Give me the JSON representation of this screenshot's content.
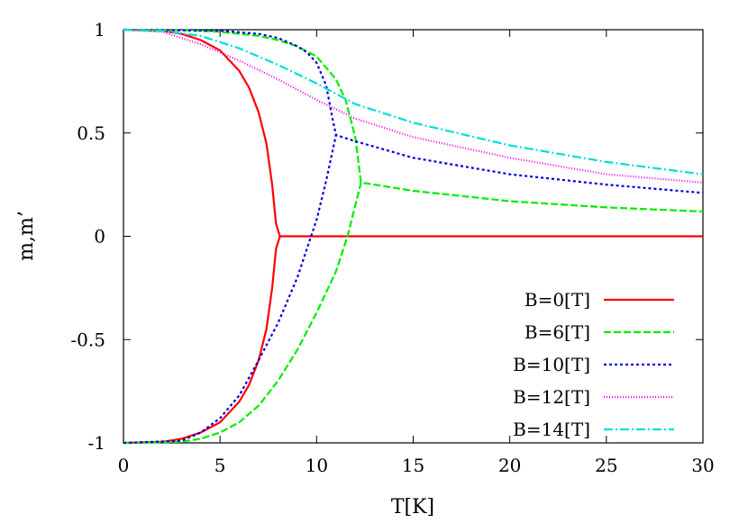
{
  "chart_data": {
    "type": "line",
    "xlabel": "T[K]",
    "ylabel": "m,m’",
    "xlim": [
      0,
      30
    ],
    "ylim": [
      -1,
      1
    ],
    "xticks": [
      0,
      5,
      10,
      15,
      20,
      25,
      30
    ],
    "yticks": [
      -1,
      -0.5,
      0,
      0.5,
      1
    ],
    "xtick_labels": [
      "0",
      "5",
      "10",
      "15",
      "20",
      "25",
      "30"
    ],
    "ytick_labels": [
      "-1",
      "-0.5",
      "0",
      "0.5",
      "1"
    ],
    "grid": false,
    "legend_position": "bottom-right",
    "series": [
      {
        "name": "B=0[T]",
        "color": "#ff0000",
        "dash": "solid",
        "branches": [
          [
            [
              0,
              1
            ],
            [
              2,
              0.995
            ],
            [
              3,
              0.98
            ],
            [
              4,
              0.95
            ],
            [
              5,
              0.9
            ],
            [
              6,
              0.8
            ],
            [
              6.5,
              0.72
            ],
            [
              7,
              0.6
            ],
            [
              7.4,
              0.45
            ],
            [
              7.7,
              0.25
            ],
            [
              7.9,
              0.06
            ],
            [
              8.1,
              0.0
            ],
            [
              9,
              0
            ],
            [
              12,
              0
            ],
            [
              15,
              0
            ],
            [
              20,
              0
            ],
            [
              25,
              0
            ],
            [
              30,
              0
            ]
          ],
          [
            [
              0,
              -1
            ],
            [
              2,
              -0.995
            ],
            [
              3,
              -0.98
            ],
            [
              4,
              -0.95
            ],
            [
              5,
              -0.9
            ],
            [
              6,
              -0.8
            ],
            [
              6.5,
              -0.72
            ],
            [
              7,
              -0.6
            ],
            [
              7.4,
              -0.45
            ],
            [
              7.7,
              -0.25
            ],
            [
              7.9,
              -0.06
            ],
            [
              8.1,
              0.0
            ]
          ]
        ]
      },
      {
        "name": "B=6[T]",
        "color": "#00ee00",
        "dash": "8,3",
        "branches": [
          [
            [
              0,
              1
            ],
            [
              3,
              0.998
            ],
            [
              5,
              0.99
            ],
            [
              7,
              0.97
            ],
            [
              8,
              0.95
            ],
            [
              9,
              0.92
            ],
            [
              10,
              0.87
            ],
            [
              11,
              0.76
            ],
            [
              11.5,
              0.66
            ],
            [
              12,
              0.48
            ],
            [
              12.3,
              0.26
            ],
            [
              13,
              0.25
            ],
            [
              15,
              0.22
            ],
            [
              20,
              0.17
            ],
            [
              25,
              0.14
            ],
            [
              30,
              0.12
            ]
          ],
          [
            [
              0,
              -1
            ],
            [
              3,
              -0.995
            ],
            [
              4,
              -0.98
            ],
            [
              5,
              -0.95
            ],
            [
              6,
              -0.9
            ],
            [
              7,
              -0.82
            ],
            [
              8,
              -0.7
            ],
            [
              9,
              -0.55
            ],
            [
              10,
              -0.37
            ],
            [
              11,
              -0.17
            ],
            [
              11.6,
              0
            ],
            [
              12.0,
              0.15
            ],
            [
              12.3,
              0.26
            ]
          ]
        ]
      },
      {
        "name": "B=10[T]",
        "color": "#0000dd",
        "dash": "3,3",
        "branches": [
          [
            [
              0,
              1
            ],
            [
              5,
              0.995
            ],
            [
              7,
              0.98
            ],
            [
              8,
              0.96
            ],
            [
              9,
              0.92
            ],
            [
              9.5,
              0.89
            ],
            [
              10,
              0.84
            ],
            [
              10.5,
              0.73
            ],
            [
              10.8,
              0.58
            ],
            [
              11,
              0.49
            ],
            [
              12,
              0.46
            ],
            [
              15,
              0.38
            ],
            [
              20,
              0.3
            ],
            [
              25,
              0.25
            ],
            [
              30,
              0.21
            ]
          ],
          [
            [
              0,
              -1
            ],
            [
              3,
              -0.99
            ],
            [
              4,
              -0.95
            ],
            [
              5,
              -0.88
            ],
            [
              6,
              -0.77
            ],
            [
              7,
              -0.6
            ],
            [
              8,
              -0.42
            ],
            [
              9,
              -0.2
            ],
            [
              10,
              0.08
            ],
            [
              10.5,
              0.27
            ],
            [
              11,
              0.49
            ]
          ]
        ]
      },
      {
        "name": "B=12[T]",
        "color": "#ee00ee",
        "dash": "1,2",
        "branches": [
          [
            [
              0,
              1
            ],
            [
              2,
              0.99
            ],
            [
              4,
              0.93
            ],
            [
              6,
              0.85
            ],
            [
              8,
              0.76
            ],
            [
              10,
              0.66
            ],
            [
              12,
              0.57
            ],
            [
              15,
              0.48
            ],
            [
              20,
              0.38
            ],
            [
              25,
              0.3
            ],
            [
              30,
              0.26
            ]
          ]
        ]
      },
      {
        "name": "B=14[T]",
        "color": "#00dddd",
        "dash": "10,3,2,3",
        "branches": [
          [
            [
              0,
              1
            ],
            [
              2,
              0.995
            ],
            [
              4,
              0.97
            ],
            [
              6,
              0.91
            ],
            [
              8,
              0.83
            ],
            [
              10,
              0.74
            ],
            [
              12,
              0.64
            ],
            [
              15,
              0.55
            ],
            [
              20,
              0.44
            ],
            [
              25,
              0.36
            ],
            [
              30,
              0.3
            ]
          ]
        ]
      }
    ]
  }
}
